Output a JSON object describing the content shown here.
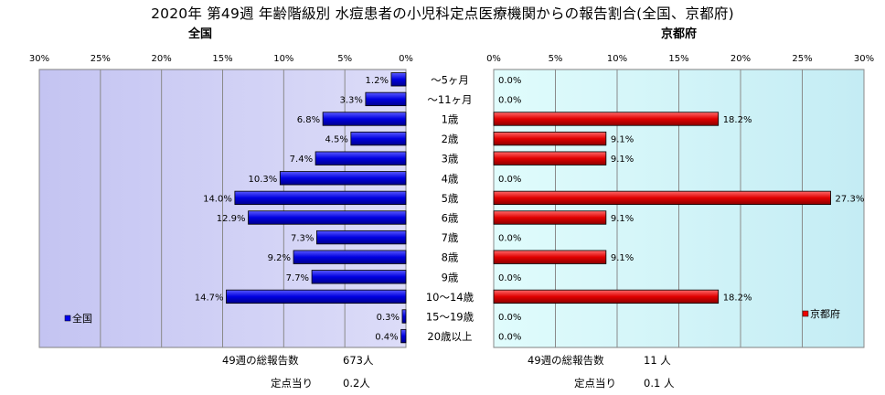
{
  "title": "2020年 第49週 年齢階級別 水痘患者の小児科定点医療機関からの報告割合(全国、京都府)",
  "colors": {
    "nation_bar": "#0000ee",
    "kyoto_bar": "#ee0000",
    "plot_bg_left": "#c8c8f4",
    "plot_bg_right": "#c8f4f4",
    "grid": "#808080"
  },
  "chart_data": [
    {
      "type": "bar",
      "orientation": "horizontal",
      "direction": "right-to-left",
      "subtitle": "全国",
      "categories": [
        "～5ヶ月",
        "～11ヶ月",
        "1歳",
        "2歳",
        "3歳",
        "4歳",
        "5歳",
        "6歳",
        "7歳",
        "8歳",
        "9歳",
        "10～14歳",
        "15～19歳",
        "20歳以上"
      ],
      "series": [
        {
          "name": "全国",
          "values": [
            1.2,
            3.3,
            6.8,
            4.5,
            7.4,
            10.3,
            14.0,
            12.9,
            7.3,
            9.2,
            7.7,
            14.7,
            0.3,
            0.4
          ]
        }
      ],
      "value_labels": [
        "1.2%",
        "3.3%",
        "6.8%",
        "4.5%",
        "7.4%",
        "10.3%",
        "14.0%",
        "12.9%",
        "7.3%",
        "9.2%",
        "7.7%",
        "14.7%",
        "0.3%",
        "0.4%"
      ],
      "xlim": [
        0,
        30
      ],
      "xticks": [
        30,
        25,
        20,
        15,
        10,
        5,
        0
      ],
      "xtick_labels": [
        "30%",
        "25%",
        "20%",
        "15%",
        "10%",
        "5%",
        "0%"
      ],
      "grid": true,
      "legend_position": "left",
      "footer": [
        {
          "label": "49週の総報告数",
          "value": "673人"
        },
        {
          "label": "定点当り",
          "value": "0.2人"
        }
      ]
    },
    {
      "type": "bar",
      "orientation": "horizontal",
      "direction": "left-to-right",
      "subtitle": "京都府",
      "categories": [
        "～5ヶ月",
        "～11ヶ月",
        "1歳",
        "2歳",
        "3歳",
        "4歳",
        "5歳",
        "6歳",
        "7歳",
        "8歳",
        "9歳",
        "10～14歳",
        "15～19歳",
        "20歳以上"
      ],
      "series": [
        {
          "name": "京都府",
          "values": [
            0.0,
            0.0,
            18.2,
            9.1,
            9.1,
            0.0,
            27.3,
            9.1,
            0.0,
            9.1,
            0.0,
            18.2,
            0.0,
            0.0
          ]
        }
      ],
      "value_labels": [
        "0.0%",
        "0.0%",
        "18.2%",
        "9.1%",
        "9.1%",
        "0.0%",
        "27.3%",
        "9.1%",
        "0.0%",
        "9.1%",
        "0.0%",
        "18.2%",
        "0.0%",
        "0.0%"
      ],
      "xlim": [
        0,
        30
      ],
      "xticks": [
        0,
        5,
        10,
        15,
        20,
        25,
        30
      ],
      "xtick_labels": [
        "0%",
        "5%",
        "10%",
        "15%",
        "20%",
        "25%",
        "30%"
      ],
      "grid": true,
      "legend_position": "right",
      "footer": [
        {
          "label": "49週の総報告数",
          "value": "11 人"
        },
        {
          "label": "定点当り",
          "value": "0.1 人"
        }
      ]
    }
  ]
}
